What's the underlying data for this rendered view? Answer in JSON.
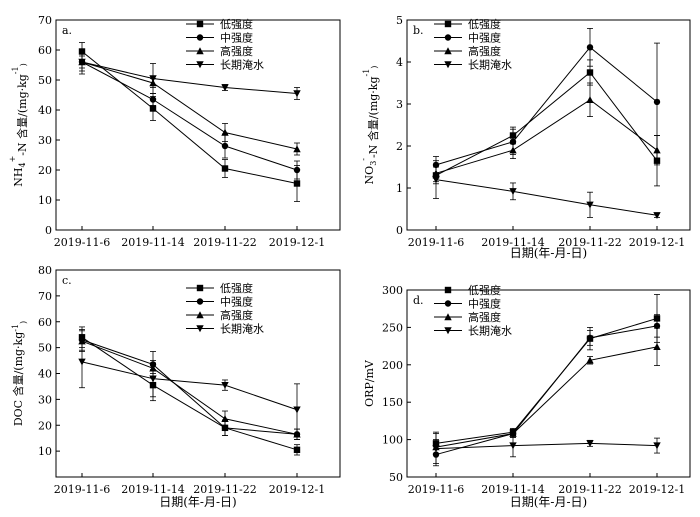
{
  "chart_data": [
    {
      "type": "line",
      "panel_label": "a.",
      "ylabel_main": "NH",
      "ylabel_sub": "4",
      "ylabel_sup": "+",
      "ylabel_rest": "-N 含量/(mg·kg",
      "ylabel_unit_sup": "-1",
      "ylabel_close": ")",
      "xlabel": "",
      "categories": [
        "2019-11-6",
        "2019-11-14",
        "2019-11-22",
        "2019-12-1"
      ],
      "ylim": [
        0,
        70
      ],
      "yticks": [
        0,
        10,
        20,
        30,
        40,
        50,
        60,
        70
      ],
      "show_xlabels": true,
      "legend_position": "top-right",
      "series": [
        {
          "name": "低强度",
          "marker": "square",
          "values": [
            59.5,
            40.5,
            20.5,
            15.5
          ],
          "errors": [
            3,
            4,
            3,
            6
          ]
        },
        {
          "name": "中强度",
          "marker": "circle",
          "values": [
            56,
            43.5,
            28,
            20
          ],
          "errors": [
            3,
            2,
            4,
            3
          ]
        },
        {
          "name": "高强度",
          "marker": "triangle-up",
          "values": [
            56,
            49,
            32.5,
            27
          ],
          "errors": [
            2,
            1.5,
            3,
            2
          ]
        },
        {
          "name": "长期淹水",
          "marker": "triangle-down",
          "values": [
            56,
            50.5,
            47.5,
            45.5
          ],
          "errors": [
            4,
            5,
            1,
            2
          ]
        }
      ]
    },
    {
      "type": "line",
      "panel_label": "b.",
      "ylabel_main": "NO",
      "ylabel_sub": "3",
      "ylabel_sup": "-",
      "ylabel_rest": "-N 含量/(mg·kg",
      "ylabel_unit_sup": "-1",
      "ylabel_close": ")",
      "xlabel": "日期(年-月-日)",
      "categories": [
        "2019-11-6",
        "2019-11-14",
        "2019-11-22",
        "2019-12-1"
      ],
      "ylim": [
        0,
        5
      ],
      "yticks": [
        0,
        1,
        2,
        3,
        4,
        5
      ],
      "show_xlabels": true,
      "legend_position": "top-right",
      "series": [
        {
          "name": "低强度",
          "marker": "square",
          "values": [
            1.3,
            2.25,
            3.75,
            1.65
          ],
          "errors": [
            0.2,
            0.2,
            0.3,
            0.6
          ]
        },
        {
          "name": "中强度",
          "marker": "circle",
          "values": [
            1.55,
            2.1,
            4.35,
            3.05
          ],
          "errors": [
            0.2,
            0.3,
            0.45,
            1.4
          ]
        },
        {
          "name": "高强度",
          "marker": "triangle-up",
          "values": [
            1.35,
            1.9,
            3.1,
            1.9
          ],
          "errors": [
            0.2,
            0.2,
            0.4,
            0.35
          ]
        },
        {
          "name": "长期淹水",
          "marker": "triangle-down",
          "values": [
            1.2,
            0.92,
            0.6,
            0.35
          ],
          "errors": [
            0.45,
            0.2,
            0.3,
            0.05
          ]
        }
      ]
    },
    {
      "type": "line",
      "panel_label": "c.",
      "ylabel_main": "DOC 含量/(mg·kg",
      "ylabel_sub": "",
      "ylabel_sup": "",
      "ylabel_rest": "",
      "ylabel_unit_sup": "-1",
      "ylabel_close": ")",
      "xlabel": "日期(年-月-日)",
      "categories": [
        "2019-11-6",
        "2019-11-14",
        "2019-11-22",
        "2019-12-1"
      ],
      "ylim": [
        0,
        80
      ],
      "yticks": [
        10,
        20,
        30,
        40,
        50,
        60,
        70,
        80
      ],
      "show_xlabels": true,
      "legend_position": "top-right",
      "series": [
        {
          "name": "低强度",
          "marker": "square",
          "values": [
            54,
            35.5,
            19,
            10.5
          ],
          "errors": [
            4,
            6,
            3,
            2
          ]
        },
        {
          "name": "中强度",
          "marker": "circle",
          "values": [
            53,
            43.5,
            19,
            16.5
          ],
          "errors": [
            4,
            5,
            3,
            2
          ]
        },
        {
          "name": "高强度",
          "marker": "triangle-up",
          "values": [
            52.5,
            42,
            22.5,
            16.5
          ],
          "errors": [
            4,
            2,
            3,
            2
          ]
        },
        {
          "name": "长期淹水",
          "marker": "triangle-down",
          "values": [
            44.5,
            38,
            35.5,
            26
          ],
          "errors": [
            10,
            7,
            2,
            10
          ]
        }
      ]
    },
    {
      "type": "line",
      "panel_label": "d.",
      "ylabel_main": "ORP/mV",
      "ylabel_sub": "",
      "ylabel_sup": "",
      "ylabel_rest": "",
      "ylabel_unit_sup": "",
      "ylabel_close": "",
      "xlabel": "日期(年-月-日)",
      "categories": [
        "2019-11-6",
        "2019-11-14",
        "2019-11-22",
        "2019-12-1"
      ],
      "ylim": [
        50,
        300
      ],
      "yticks": [
        50,
        100,
        150,
        200,
        250,
        300
      ],
      "show_xlabels": true,
      "legend_position": "top-right",
      "series": [
        {
          "name": "低强度",
          "marker": "square",
          "values": [
            95,
            110,
            235,
            262
          ],
          "errors": [
            15,
            5,
            15,
            32
          ]
        },
        {
          "name": "中强度",
          "marker": "circle",
          "values": [
            80,
            108,
            236,
            252
          ],
          "errors": [
            15,
            5,
            10,
            15
          ]
        },
        {
          "name": "高强度",
          "marker": "triangle-up",
          "values": [
            90,
            108,
            206,
            224
          ],
          "errors": [
            10,
            5,
            5,
            25
          ]
        },
        {
          "name": "长期淹水",
          "marker": "triangle-down",
          "values": [
            88,
            92,
            95,
            92
          ],
          "errors": [
            20,
            15,
            4,
            10
          ]
        }
      ]
    }
  ]
}
